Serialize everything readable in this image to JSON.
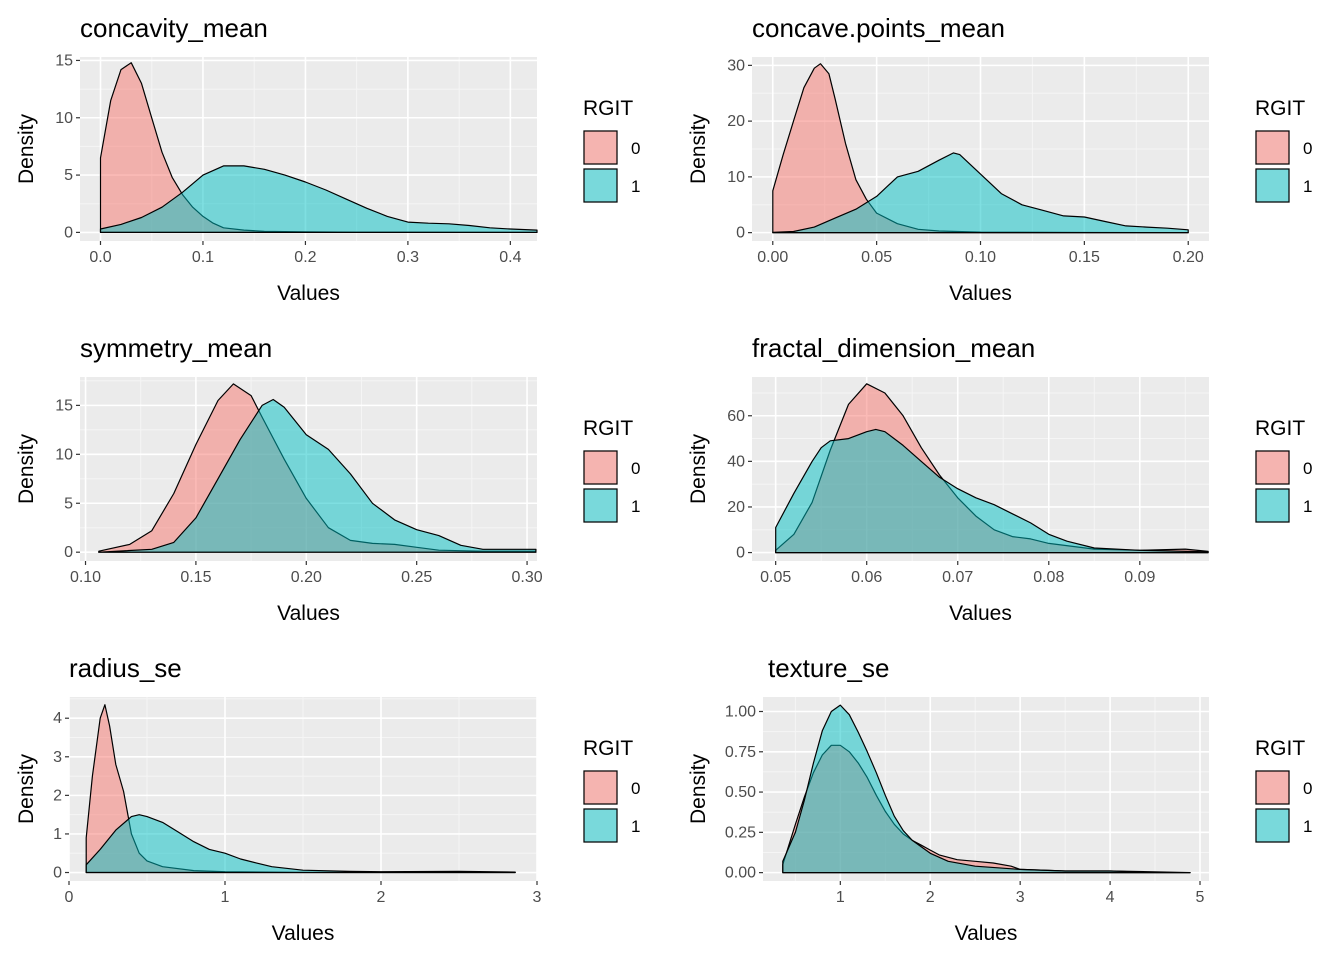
{
  "legend": {
    "title": "RGIT",
    "levels": [
      "0",
      "1"
    ],
    "colors": {
      "0": "#F8766D",
      "1": "#00BFC4"
    }
  },
  "chart_data": [
    {
      "type": "area",
      "title": "concavity_mean",
      "xlabel": "Values",
      "ylabel": "Density",
      "xlim": [
        -0.02,
        0.426
      ],
      "ylim": [
        -0.75,
        15.3
      ],
      "xticks": [
        0.0,
        0.1,
        0.2,
        0.3,
        0.4
      ],
      "xtick_labels": [
        "0.0",
        "0.1",
        "0.2",
        "0.3",
        "0.4"
      ],
      "yticks": [
        0,
        5,
        10,
        15
      ],
      "ytick_labels": [
        "0",
        "5",
        "10",
        "15"
      ],
      "series": [
        {
          "name": "0",
          "x": [
            0.0,
            0.01,
            0.02,
            0.03,
            0.04,
            0.05,
            0.06,
            0.07,
            0.08,
            0.09,
            0.1,
            0.11,
            0.12,
            0.14,
            0.16,
            0.2,
            0.25,
            0.3,
            0.35,
            0.4,
            0.426
          ],
          "y": [
            6.5,
            11.5,
            14.2,
            14.8,
            13.0,
            10.0,
            7.0,
            4.8,
            3.3,
            2.2,
            1.4,
            0.8,
            0.4,
            0.2,
            0.1,
            0.05,
            0.02,
            0.02,
            0.01,
            0.01,
            0.0
          ]
        },
        {
          "name": "1",
          "x": [
            0.0,
            0.02,
            0.04,
            0.06,
            0.08,
            0.1,
            0.12,
            0.14,
            0.16,
            0.18,
            0.2,
            0.22,
            0.24,
            0.26,
            0.28,
            0.3,
            0.32,
            0.34,
            0.36,
            0.38,
            0.4,
            0.426
          ],
          "y": [
            0.3,
            0.7,
            1.3,
            2.2,
            3.5,
            5.0,
            5.8,
            5.8,
            5.5,
            5.0,
            4.4,
            3.7,
            2.9,
            2.1,
            1.4,
            0.9,
            0.8,
            0.75,
            0.6,
            0.4,
            0.3,
            0.2
          ]
        }
      ]
    },
    {
      "type": "area",
      "title": "concave.points_mean",
      "xlabel": "Values",
      "ylabel": "Density",
      "xlim": [
        -0.01,
        0.21
      ],
      "ylim": [
        -1.5,
        31.5
      ],
      "xticks": [
        0.0,
        0.05,
        0.1,
        0.15,
        0.2
      ],
      "xtick_labels": [
        "0.00",
        "0.05",
        "0.10",
        "0.15",
        "0.20"
      ],
      "yticks": [
        0,
        10,
        20,
        30
      ],
      "ytick_labels": [
        "0",
        "10",
        "20",
        "30"
      ],
      "series": [
        {
          "name": "0",
          "x": [
            0.0,
            0.005,
            0.01,
            0.015,
            0.02,
            0.023,
            0.027,
            0.03,
            0.035,
            0.04,
            0.045,
            0.05,
            0.06,
            0.07,
            0.08,
            0.1,
            0.15,
            0.2
          ],
          "y": [
            7.5,
            14.0,
            20.0,
            26.0,
            29.5,
            30.3,
            28.5,
            24.0,
            16.0,
            9.5,
            6.0,
            3.5,
            1.6,
            0.6,
            0.3,
            0.1,
            0.02,
            0.0
          ]
        },
        {
          "name": "1",
          "x": [
            0.0,
            0.01,
            0.02,
            0.03,
            0.04,
            0.05,
            0.06,
            0.07,
            0.08,
            0.087,
            0.09,
            0.1,
            0.11,
            0.12,
            0.13,
            0.14,
            0.15,
            0.16,
            0.17,
            0.18,
            0.19,
            0.2
          ],
          "y": [
            0.05,
            0.2,
            1.0,
            2.6,
            4.2,
            6.5,
            10.0,
            11.0,
            13.0,
            14.3,
            14.0,
            10.5,
            7.0,
            5.0,
            4.0,
            3.0,
            2.8,
            2.0,
            1.2,
            1.0,
            0.8,
            0.5
          ]
        }
      ]
    },
    {
      "type": "area",
      "title": "symmetry_mean",
      "xlabel": "Values",
      "ylabel": "Density",
      "xlim": [
        0.0975,
        0.3045
      ],
      "ylim": [
        -0.9,
        17.9
      ],
      "xticks": [
        0.1,
        0.15,
        0.2,
        0.25,
        0.3
      ],
      "xtick_labels": [
        "0.10",
        "0.15",
        "0.20",
        "0.25",
        "0.30"
      ],
      "yticks": [
        0,
        5,
        10,
        15
      ],
      "ytick_labels": [
        "0",
        "5",
        "10",
        "15"
      ],
      "series": [
        {
          "name": "0",
          "x": [
            0.106,
            0.12,
            0.13,
            0.14,
            0.15,
            0.16,
            0.167,
            0.175,
            0.18,
            0.19,
            0.2,
            0.21,
            0.22,
            0.23,
            0.24,
            0.25,
            0.26,
            0.28,
            0.304
          ],
          "y": [
            0.1,
            0.8,
            2.2,
            6.0,
            11.0,
            15.5,
            17.2,
            16.0,
            13.8,
            9.5,
            5.5,
            2.5,
            1.2,
            0.9,
            0.8,
            0.5,
            0.2,
            0.1,
            0.1
          ]
        },
        {
          "name": "1",
          "x": [
            0.106,
            0.13,
            0.14,
            0.15,
            0.16,
            0.17,
            0.18,
            0.185,
            0.19,
            0.2,
            0.21,
            0.22,
            0.23,
            0.24,
            0.25,
            0.26,
            0.27,
            0.28,
            0.304
          ],
          "y": [
            0.0,
            0.3,
            1.0,
            3.5,
            7.5,
            11.5,
            15.0,
            15.6,
            14.8,
            12.0,
            10.5,
            8.0,
            5.0,
            3.3,
            2.3,
            1.7,
            0.7,
            0.3,
            0.3
          ]
        }
      ]
    },
    {
      "type": "area",
      "title": "fractal_dimension_mean",
      "xlabel": "Values",
      "ylabel": "Density",
      "xlim": [
        0.0474,
        0.0976
      ],
      "ylim": [
        -3.7,
        77.0
      ],
      "xticks": [
        0.05,
        0.06,
        0.07,
        0.08,
        0.09
      ],
      "xtick_labels": [
        "0.05",
        "0.06",
        "0.07",
        "0.08",
        "0.09"
      ],
      "yticks": [
        0,
        20,
        40,
        60
      ],
      "ytick_labels": [
        "0",
        "20",
        "40",
        "60"
      ],
      "series": [
        {
          "name": "0",
          "x": [
            0.05,
            0.052,
            0.054,
            0.056,
            0.058,
            0.06,
            0.062,
            0.064,
            0.066,
            0.068,
            0.07,
            0.072,
            0.074,
            0.076,
            0.078,
            0.08,
            0.085,
            0.09,
            0.095,
            0.0975
          ],
          "y": [
            1.0,
            8.0,
            22.0,
            45.0,
            65.0,
            74.0,
            70.0,
            60.0,
            46.0,
            34.0,
            24.0,
            16.0,
            10.0,
            7.0,
            6.0,
            4.0,
            1.5,
            1.0,
            1.5,
            0.5
          ]
        },
        {
          "name": "1",
          "x": [
            0.05,
            0.052,
            0.054,
            0.055,
            0.056,
            0.058,
            0.06,
            0.061,
            0.062,
            0.064,
            0.066,
            0.068,
            0.07,
            0.072,
            0.074,
            0.076,
            0.078,
            0.08,
            0.082,
            0.085,
            0.09,
            0.0975
          ],
          "y": [
            11.0,
            26.0,
            40.0,
            46.0,
            49.0,
            50.0,
            53.0,
            54.0,
            53.0,
            47.0,
            40.0,
            33.0,
            28.0,
            24.0,
            21.0,
            17.0,
            13.0,
            8.0,
            5.0,
            2.0,
            1.0,
            0.3
          ]
        }
      ]
    },
    {
      "type": "area",
      "title": "radius_se",
      "xlabel": "Values",
      "ylabel": "Density",
      "xlim": [
        0.0,
        3.0
      ],
      "ylim": [
        -0.22,
        4.55
      ],
      "xticks": [
        0,
        1,
        2,
        3
      ],
      "xtick_labels": [
        "0",
        "1",
        "2",
        "3"
      ],
      "yticks": [
        0,
        1,
        2,
        3,
        4
      ],
      "ytick_labels": [
        "0",
        "1",
        "2",
        "3",
        "4"
      ],
      "series": [
        {
          "name": "0",
          "x": [
            0.11,
            0.15,
            0.2,
            0.23,
            0.26,
            0.3,
            0.35,
            0.4,
            0.45,
            0.5,
            0.6,
            0.8,
            1.0,
            1.5,
            2.0,
            2.86
          ],
          "y": [
            0.9,
            2.5,
            4.0,
            4.35,
            3.8,
            2.8,
            2.1,
            1.0,
            0.5,
            0.3,
            0.15,
            0.05,
            0.02,
            0.0,
            0.0,
            0.0
          ]
        },
        {
          "name": "1",
          "x": [
            0.11,
            0.2,
            0.3,
            0.4,
            0.45,
            0.5,
            0.6,
            0.7,
            0.8,
            0.9,
            1.0,
            1.1,
            1.2,
            1.3,
            1.5,
            1.8,
            2.0,
            2.5,
            2.86
          ],
          "y": [
            0.2,
            0.6,
            1.1,
            1.45,
            1.5,
            1.45,
            1.3,
            1.05,
            0.8,
            0.6,
            0.5,
            0.35,
            0.25,
            0.15,
            0.06,
            0.03,
            0.02,
            0.03,
            0.01
          ]
        }
      ]
    },
    {
      "type": "area",
      "title": "texture_se",
      "xlabel": "Values",
      "ylabel": "Density",
      "xlim": [
        0.14,
        5.1
      ],
      "ylim": [
        -0.052,
        1.09
      ],
      "xticks": [
        1,
        2,
        3,
        4,
        5
      ],
      "xtick_labels": [
        "1",
        "2",
        "3",
        "4",
        "5"
      ],
      "yticks": [
        0.0,
        0.25,
        0.5,
        0.75,
        1.0
      ],
      "ytick_labels": [
        "0.00",
        "0.25",
        "0.50",
        "0.75",
        "1.00"
      ],
      "series": [
        {
          "name": "0",
          "x": [
            0.36,
            0.5,
            0.6,
            0.7,
            0.8,
            0.9,
            1.0,
            1.1,
            1.2,
            1.3,
            1.4,
            1.5,
            1.6,
            1.7,
            1.8,
            1.9,
            2.0,
            2.1,
            2.3,
            2.5,
            2.7,
            2.9,
            3.0,
            3.5,
            4.0,
            4.5,
            4.89
          ],
          "y": [
            0.05,
            0.3,
            0.47,
            0.62,
            0.73,
            0.79,
            0.79,
            0.75,
            0.68,
            0.59,
            0.48,
            0.38,
            0.3,
            0.24,
            0.2,
            0.17,
            0.14,
            0.11,
            0.08,
            0.07,
            0.06,
            0.04,
            0.02,
            0.01,
            0.01,
            0.005,
            0.0
          ]
        },
        {
          "name": "1",
          "x": [
            0.36,
            0.5,
            0.6,
            0.7,
            0.8,
            0.9,
            1.0,
            1.1,
            1.2,
            1.3,
            1.4,
            1.5,
            1.6,
            1.7,
            1.8,
            2.0,
            2.2,
            2.5,
            3.0,
            3.5,
            4.0,
            4.5,
            4.89
          ],
          "y": [
            0.07,
            0.25,
            0.45,
            0.68,
            0.88,
            1.0,
            1.04,
            0.98,
            0.87,
            0.75,
            0.62,
            0.48,
            0.35,
            0.26,
            0.2,
            0.12,
            0.07,
            0.04,
            0.02,
            0.01,
            0.01,
            0.0,
            0.0
          ]
        }
      ]
    }
  ]
}
